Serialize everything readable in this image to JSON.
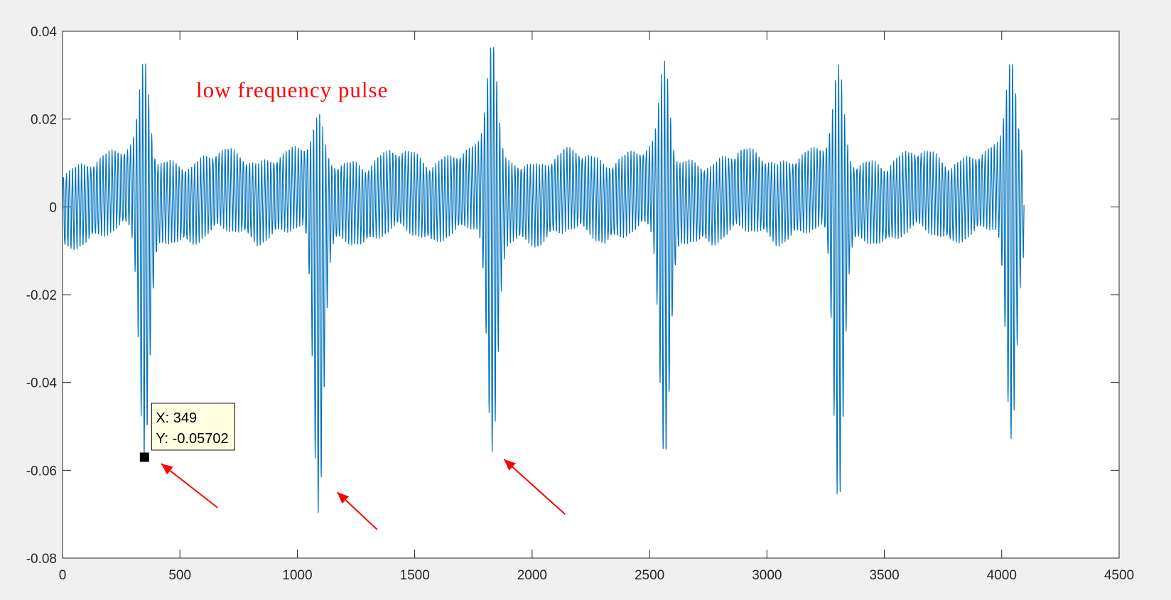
{
  "chart_data": {
    "type": "line",
    "title": "",
    "xlabel": "",
    "ylabel": "",
    "xlim": [
      0,
      4500
    ],
    "ylim": [
      -0.08,
      0.04
    ],
    "x_ticks": [
      0,
      500,
      1000,
      1500,
      2000,
      2500,
      3000,
      3500,
      4000,
      4500
    ],
    "y_ticks": [
      -0.08,
      -0.06,
      -0.04,
      -0.02,
      0,
      0.02,
      0.04
    ],
    "x_tick_labels": [
      "0",
      "500",
      "1000",
      "1500",
      "2000",
      "2500",
      "3000",
      "3500",
      "4000",
      "4500"
    ],
    "y_tick_labels": [
      "-0.08",
      "-0.06",
      "-0.04",
      "-0.02",
      "0",
      "0.02",
      "0.04"
    ],
    "grid": false,
    "series": [
      {
        "color": "#0072bd",
        "sample_count": 4096,
        "oscillation_period": 13,
        "pulses": [
          {
            "x": 349,
            "min": -0.057,
            "max": 0.033
          },
          {
            "x": 1090,
            "min": -0.069,
            "max": 0.021
          },
          {
            "x": 1830,
            "min": -0.057,
            "max": 0.039
          },
          {
            "x": 2565,
            "min": -0.058,
            "max": 0.033
          },
          {
            "x": 3305,
            "min": -0.067,
            "max": 0.032
          },
          {
            "x": 4040,
            "min": -0.054,
            "max": 0.035
          }
        ]
      }
    ],
    "annotation_text": "low frequency pulse",
    "annotation_color": "#ff0000",
    "data_tip": {
      "x_label": "X: 349",
      "y_label": "Y: -0.05702",
      "x": 349,
      "y": -0.05702
    },
    "arrows": [
      {
        "from": [
          660,
          -0.0685
        ],
        "to": [
          420,
          -0.0585
        ]
      },
      {
        "from": [
          1340,
          -0.0735
        ],
        "to": [
          1170,
          -0.065
        ]
      },
      {
        "from": [
          2140,
          -0.07
        ],
        "to": [
          1880,
          -0.0575
        ]
      }
    ]
  }
}
